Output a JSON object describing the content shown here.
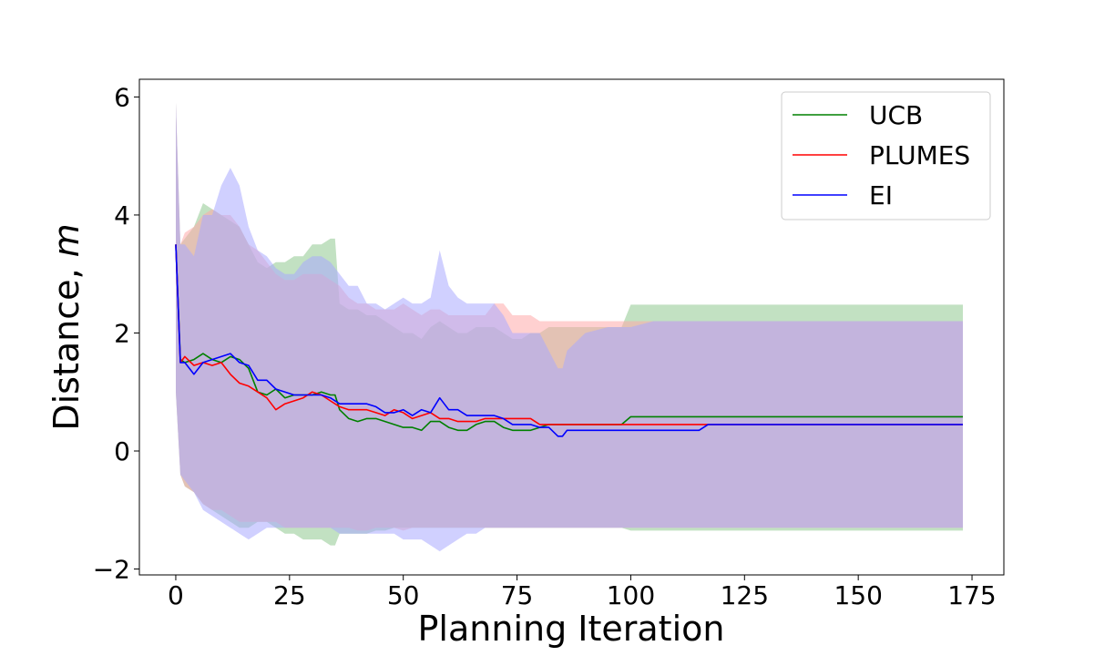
{
  "chart_data": {
    "type": "line",
    "title": "",
    "xlabel": "Planning Iteration",
    "ylabel_prefix": "Distance, ",
    "ylabel_unit": "m",
    "xlim": [
      -8,
      182
    ],
    "ylim": [
      -2.1,
      6.3
    ],
    "x_ticks": [
      0,
      25,
      50,
      75,
      100,
      125,
      150,
      175
    ],
    "x_tick_labels": [
      "0",
      "25",
      "50",
      "75",
      "100",
      "125",
      "150",
      "175"
    ],
    "y_ticks": [
      -2,
      0,
      2,
      4,
      6
    ],
    "y_tick_labels": [
      "−2",
      "0",
      "2",
      "4",
      "6"
    ],
    "legend_position": "top-right",
    "series": [
      {
        "name": "UCB",
        "color": "#008000",
        "band_color": "#90c890",
        "x": [
          0,
          1,
          2,
          4,
          6,
          8,
          10,
          12,
          14,
          16,
          18,
          20,
          22,
          24,
          26,
          28,
          30,
          32,
          34,
          35,
          36,
          38,
          40,
          42,
          44,
          46,
          48,
          50,
          52,
          54,
          56,
          58,
          60,
          62,
          64,
          66,
          68,
          70,
          72,
          74,
          76,
          78,
          80,
          82,
          84,
          86,
          88,
          90,
          92,
          94,
          96,
          98,
          100,
          105,
          110,
          115,
          120,
          130,
          140,
          150,
          160,
          173
        ],
        "mean": [
          3.5,
          1.55,
          1.5,
          1.55,
          1.65,
          1.55,
          1.5,
          1.6,
          1.55,
          1.4,
          1.0,
          0.95,
          1.05,
          0.9,
          0.95,
          0.95,
          0.95,
          1.0,
          0.95,
          0.95,
          0.7,
          0.55,
          0.5,
          0.55,
          0.55,
          0.5,
          0.45,
          0.4,
          0.4,
          0.35,
          0.5,
          0.5,
          0.4,
          0.35,
          0.35,
          0.45,
          0.5,
          0.5,
          0.4,
          0.35,
          0.35,
          0.35,
          0.4,
          0.45,
          0.45,
          0.45,
          0.45,
          0.45,
          0.45,
          0.45,
          0.45,
          0.45,
          0.58,
          0.58,
          0.58,
          0.58,
          0.58,
          0.58,
          0.58,
          0.58,
          0.58,
          0.58
        ],
        "upper": [
          5.9,
          3.5,
          3.6,
          3.8,
          4.2,
          4.1,
          4.0,
          3.9,
          3.8,
          3.5,
          3.2,
          3.1,
          3.2,
          3.2,
          3.3,
          3.3,
          3.5,
          3.5,
          3.6,
          3.6,
          2.5,
          2.4,
          2.4,
          2.3,
          2.3,
          2.2,
          2.1,
          2.0,
          2.0,
          1.9,
          2.1,
          2.2,
          2.1,
          2.0,
          2.0,
          2.1,
          2.1,
          2.1,
          2.0,
          1.9,
          1.9,
          2.0,
          2.0,
          2.1,
          2.1,
          2.1,
          2.1,
          2.1,
          2.1,
          2.1,
          2.1,
          2.1,
          2.48,
          2.48,
          2.48,
          2.48,
          2.48,
          2.48,
          2.48,
          2.48,
          2.48,
          2.48
        ],
        "lower": [
          1.0,
          -0.4,
          -0.6,
          -0.7,
          -0.9,
          -1.0,
          -1.1,
          -1.2,
          -1.3,
          -1.3,
          -1.2,
          -1.2,
          -1.3,
          -1.4,
          -1.4,
          -1.5,
          -1.5,
          -1.5,
          -1.6,
          -1.6,
          -1.4,
          -1.4,
          -1.4,
          -1.4,
          -1.35,
          -1.35,
          -1.3,
          -1.3,
          -1.3,
          -1.3,
          -1.3,
          -1.3,
          -1.3,
          -1.3,
          -1.3,
          -1.3,
          -1.3,
          -1.3,
          -1.3,
          -1.3,
          -1.3,
          -1.3,
          -1.3,
          -1.3,
          -1.3,
          -1.3,
          -1.3,
          -1.3,
          -1.3,
          -1.3,
          -1.3,
          -1.3,
          -1.35,
          -1.35,
          -1.35,
          -1.35,
          -1.35,
          -1.35,
          -1.35,
          -1.35,
          -1.35,
          -1.35
        ]
      },
      {
        "name": "PLUMES",
        "color": "#ff0000",
        "band_color": "#ffaaaa",
        "x": [
          0,
          1,
          2,
          4,
          6,
          8,
          10,
          12,
          14,
          16,
          18,
          20,
          22,
          24,
          26,
          28,
          30,
          32,
          34,
          36,
          38,
          40,
          42,
          44,
          46,
          48,
          50,
          52,
          54,
          56,
          58,
          60,
          62,
          64,
          66,
          68,
          70,
          72,
          74,
          76,
          78,
          80,
          85,
          90,
          95,
          100,
          105,
          110,
          117,
          120,
          130,
          140,
          150,
          160,
          173
        ],
        "mean": [
          3.5,
          1.5,
          1.6,
          1.45,
          1.5,
          1.45,
          1.5,
          1.3,
          1.15,
          1.1,
          1.0,
          0.9,
          0.7,
          0.8,
          0.85,
          0.9,
          1.0,
          0.95,
          0.85,
          0.75,
          0.7,
          0.7,
          0.7,
          0.65,
          0.6,
          0.7,
          0.65,
          0.55,
          0.6,
          0.65,
          0.55,
          0.55,
          0.5,
          0.5,
          0.5,
          0.55,
          0.55,
          0.55,
          0.55,
          0.55,
          0.55,
          0.45,
          0.45,
          0.45,
          0.45,
          0.45,
          0.45,
          0.45,
          0.45,
          0.45,
          0.45,
          0.45,
          0.45,
          0.45,
          0.45
        ],
        "upper": [
          5.9,
          3.5,
          3.7,
          3.8,
          4.0,
          4.1,
          4.0,
          4.0,
          3.8,
          3.5,
          3.4,
          3.2,
          3.0,
          2.9,
          2.9,
          3.0,
          3.0,
          3.0,
          2.9,
          2.8,
          2.6,
          2.5,
          2.5,
          2.4,
          2.4,
          2.4,
          2.5,
          2.4,
          2.3,
          2.4,
          2.4,
          2.3,
          2.3,
          2.3,
          2.3,
          2.3,
          2.5,
          2.5,
          2.3,
          2.3,
          2.3,
          2.2,
          2.2,
          2.2,
          2.2,
          2.2,
          2.2,
          2.2,
          2.2,
          2.2,
          2.2,
          2.2,
          2.2,
          2.2,
          2.2
        ],
        "lower": [
          1.0,
          -0.4,
          -0.6,
          -0.7,
          -0.9,
          -1.0,
          -1.0,
          -1.1,
          -1.2,
          -1.2,
          -1.2,
          -1.2,
          -1.2,
          -1.3,
          -1.3,
          -1.3,
          -1.3,
          -1.3,
          -1.3,
          -1.3,
          -1.3,
          -1.35,
          -1.35,
          -1.3,
          -1.3,
          -1.3,
          -1.35,
          -1.3,
          -1.3,
          -1.3,
          -1.3,
          -1.3,
          -1.3,
          -1.3,
          -1.3,
          -1.3,
          -1.3,
          -1.3,
          -1.3,
          -1.3,
          -1.3,
          -1.3,
          -1.3,
          -1.3,
          -1.3,
          -1.3,
          -1.3,
          -1.3,
          -1.3,
          -1.3,
          -1.3,
          -1.3,
          -1.3,
          -1.3,
          -1.3
        ]
      },
      {
        "name": "EI",
        "color": "#0000ff",
        "band_color": "#aaaaff",
        "x": [
          0,
          1,
          2,
          4,
          6,
          8,
          10,
          12,
          14,
          16,
          18,
          20,
          22,
          24,
          26,
          28,
          30,
          32,
          34,
          36,
          38,
          40,
          42,
          44,
          46,
          48,
          50,
          52,
          54,
          56,
          58,
          60,
          62,
          64,
          66,
          68,
          70,
          72,
          74,
          76,
          78,
          80,
          82,
          84,
          85,
          86,
          90,
          95,
          100,
          105,
          110,
          115,
          117,
          120,
          130,
          140,
          150,
          160,
          173
        ],
        "mean": [
          3.5,
          1.5,
          1.5,
          1.3,
          1.5,
          1.55,
          1.6,
          1.65,
          1.5,
          1.45,
          1.2,
          1.2,
          1.05,
          1.0,
          0.95,
          0.95,
          0.95,
          0.95,
          0.9,
          0.8,
          0.8,
          0.8,
          0.8,
          0.75,
          0.65,
          0.65,
          0.7,
          0.6,
          0.7,
          0.65,
          0.9,
          0.7,
          0.7,
          0.6,
          0.6,
          0.6,
          0.6,
          0.55,
          0.45,
          0.45,
          0.45,
          0.4,
          0.4,
          0.25,
          0.25,
          0.35,
          0.35,
          0.35,
          0.35,
          0.35,
          0.35,
          0.35,
          0.45,
          0.45,
          0.45,
          0.45,
          0.45,
          0.45,
          0.45
        ],
        "upper": [
          5.9,
          3.5,
          3.5,
          3.3,
          4.0,
          4.0,
          4.5,
          4.8,
          4.5,
          3.8,
          3.4,
          3.3,
          3.1,
          3.0,
          3.0,
          3.2,
          3.3,
          3.3,
          3.2,
          3.0,
          2.8,
          2.8,
          2.5,
          2.5,
          2.4,
          2.5,
          2.6,
          2.5,
          2.5,
          2.6,
          3.4,
          2.8,
          2.6,
          2.5,
          2.5,
          2.5,
          2.5,
          2.3,
          2.0,
          2.0,
          2.0,
          2.0,
          1.7,
          1.4,
          1.4,
          1.7,
          2.0,
          2.1,
          2.1,
          2.2,
          2.2,
          2.2,
          2.2,
          2.2,
          2.2,
          2.2,
          2.2,
          2.2,
          2.2
        ],
        "lower": [
          1.0,
          -0.4,
          -0.5,
          -0.7,
          -1.0,
          -1.1,
          -1.2,
          -1.3,
          -1.4,
          -1.5,
          -1.4,
          -1.3,
          -1.3,
          -1.3,
          -1.3,
          -1.3,
          -1.3,
          -1.3,
          -1.3,
          -1.4,
          -1.4,
          -1.4,
          -1.4,
          -1.4,
          -1.4,
          -1.4,
          -1.5,
          -1.5,
          -1.5,
          -1.6,
          -1.7,
          -1.6,
          -1.5,
          -1.4,
          -1.4,
          -1.3,
          -1.3,
          -1.3,
          -1.3,
          -1.3,
          -1.3,
          -1.3,
          -1.3,
          -1.3,
          -1.3,
          -1.3,
          -1.3,
          -1.3,
          -1.3,
          -1.3,
          -1.3,
          -1.3,
          -1.3,
          -1.3,
          -1.3,
          -1.3,
          -1.3,
          -1.3,
          -1.3
        ]
      }
    ]
  }
}
